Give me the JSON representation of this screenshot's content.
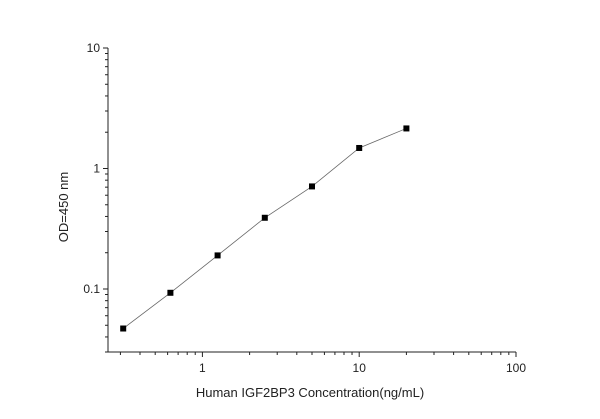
{
  "chart_data": {
    "type": "line",
    "title": "",
    "xlabel": "Human IGF2BP3 Concentration(ng/mL)",
    "ylabel": "OD=450 nm",
    "x_scale": "log",
    "y_scale": "log",
    "xlim": [
      0.25,
      100
    ],
    "ylim": [
      0.03,
      10
    ],
    "x_ticks": [
      {
        "value": 1,
        "label": "1"
      },
      {
        "value": 10,
        "label": "10"
      },
      {
        "value": 100,
        "label": "100"
      }
    ],
    "y_ticks": [
      {
        "value": 0.1,
        "label": "0.1"
      },
      {
        "value": 1,
        "label": "1"
      },
      {
        "value": 10,
        "label": "10"
      }
    ],
    "grid": false,
    "legend": "none",
    "marker": "square",
    "line_color": "#666666",
    "marker_color": "#000000",
    "series": [
      {
        "x": [
          0.3125,
          0.625,
          1.25,
          2.5,
          5,
          10,
          20
        ],
        "y": [
          0.047,
          0.093,
          0.19,
          0.39,
          0.71,
          1.48,
          2.15
        ]
      }
    ]
  }
}
